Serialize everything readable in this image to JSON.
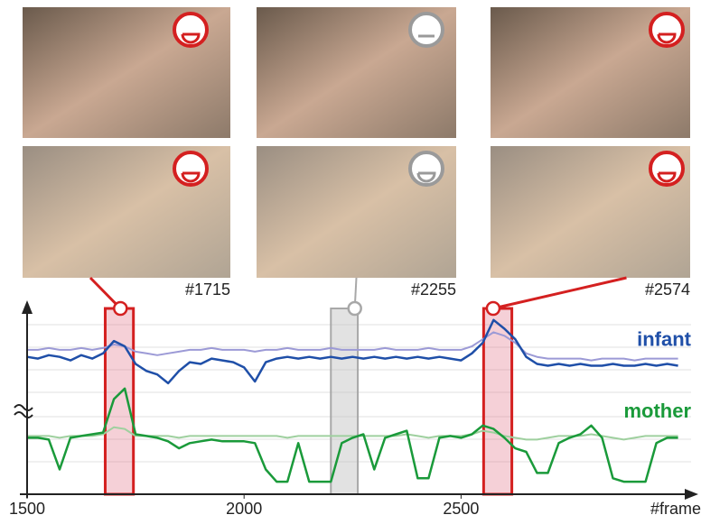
{
  "chart_data": {
    "type": "line",
    "x_label": "#frame",
    "xlim": [
      1500,
      3030
    ],
    "xticks": [
      1500,
      2000,
      2500
    ],
    "ylim": [
      0,
      100
    ],
    "x": [
      1500,
      1525,
      1550,
      1575,
      1600,
      1625,
      1650,
      1675,
      1700,
      1725,
      1750,
      1775,
      1800,
      1825,
      1850,
      1875,
      1900,
      1925,
      1950,
      1975,
      2000,
      2025,
      2050,
      2075,
      2100,
      2125,
      2150,
      2175,
      2200,
      2225,
      2250,
      2275,
      2300,
      2325,
      2350,
      2375,
      2400,
      2425,
      2450,
      2475,
      2500,
      2525,
      2550,
      2575,
      2600,
      2625,
      2650,
      2675,
      2700,
      2725,
      2750,
      2775,
      2800,
      2825,
      2850,
      2875,
      2900,
      2925,
      2950,
      2975,
      3000
    ],
    "series": [
      {
        "color": "#9c9ad6",
        "values": [
          78,
          78,
          79,
          78,
          78,
          79,
          78,
          79,
          81,
          80,
          77,
          76,
          75,
          76,
          77,
          78,
          78,
          79,
          78,
          78,
          78,
          77,
          78,
          78,
          79,
          78,
          78,
          78,
          79,
          78,
          78,
          78,
          78,
          79,
          78,
          78,
          78,
          79,
          78,
          78,
          78,
          80,
          84,
          88,
          86,
          82,
          76,
          74,
          73,
          73,
          73,
          73,
          72,
          73,
          73,
          73,
          72,
          73,
          73,
          73,
          73
        ]
      },
      {
        "name": "infant",
        "color": "#1f4fa8",
        "values": [
          74,
          73,
          75,
          74,
          72,
          75,
          73,
          76,
          83,
          80,
          70,
          66,
          64,
          59,
          66,
          71,
          70,
          73,
          72,
          71,
          68,
          60,
          71,
          73,
          74,
          73,
          74,
          73,
          74,
          73,
          74,
          73,
          74,
          73,
          74,
          73,
          74,
          73,
          74,
          73,
          72,
          76,
          82,
          95,
          90,
          84,
          74,
          70,
          69,
          70,
          69,
          70,
          69,
          69,
          70,
          69,
          69,
          70,
          69,
          70,
          69
        ]
      },
      {
        "color": "#9fd09f",
        "values": [
          29,
          29,
          29,
          28,
          29,
          29,
          29,
          30,
          34,
          33,
          29,
          29,
          29,
          29,
          28,
          29,
          29,
          29,
          29,
          29,
          29,
          29,
          29,
          29,
          28,
          29,
          29,
          29,
          29,
          29,
          29,
          29,
          29,
          29,
          29,
          30,
          29,
          28,
          29,
          29,
          29,
          30,
          32,
          31,
          29,
          28,
          27,
          27,
          28,
          29,
          29,
          29,
          30,
          29,
          28,
          27,
          28,
          29,
          29,
          29,
          29
        ]
      },
      {
        "name": "mother",
        "color": "#1a9a3a",
        "values": [
          28,
          28,
          27,
          10,
          28,
          29,
          30,
          31,
          50,
          56,
          30,
          29,
          28,
          26,
          22,
          25,
          26,
          27,
          26,
          26,
          26,
          25,
          10,
          3,
          3,
          25,
          3,
          3,
          3,
          25,
          28,
          30,
          10,
          28,
          30,
          32,
          5,
          5,
          28,
          29,
          28,
          30,
          35,
          33,
          28,
          22,
          20,
          8,
          8,
          25,
          28,
          30,
          35,
          28,
          5,
          3,
          3,
          3,
          25,
          28,
          28
        ]
      }
    ],
    "highlights": [
      {
        "frame": {
          "value": 1715,
          "label": "#1715"
        },
        "start": 1680,
        "end": 1745,
        "color": "#d42020"
      },
      {
        "frame": {
          "value": 2255,
          "label": "#2255"
        },
        "start": 2200,
        "end": 2262,
        "color": "#a8a8a8"
      },
      {
        "frame": {
          "value": 2574,
          "label": "#2574"
        },
        "start": 2552,
        "end": 2617,
        "color": "#d42020"
      }
    ]
  }
}
